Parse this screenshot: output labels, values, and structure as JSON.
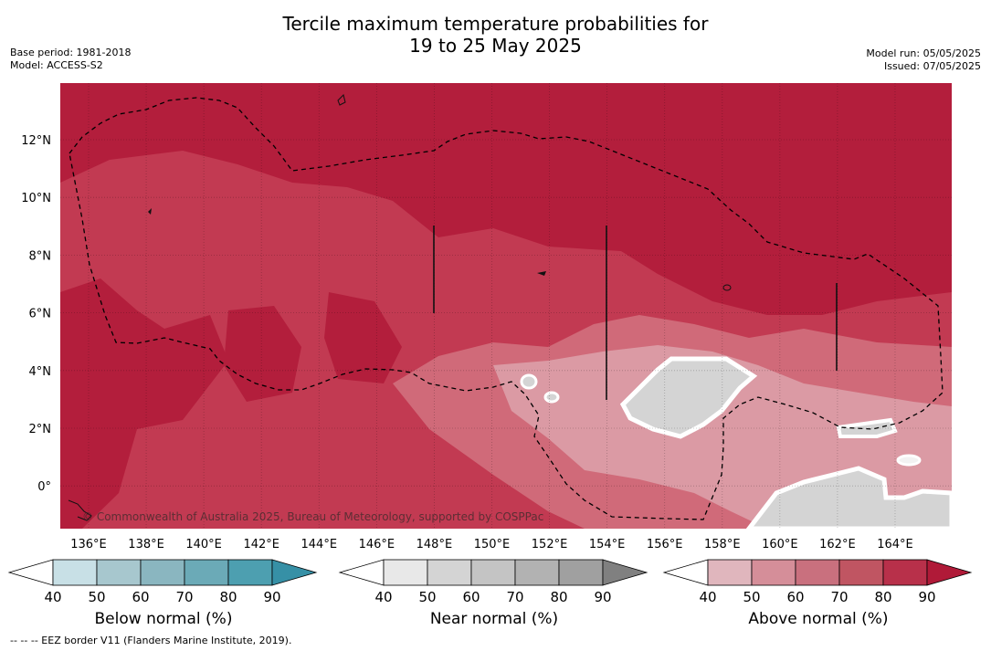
{
  "title": {
    "line1": "Tercile maximum temperature probabilities for",
    "line2": "19 to 25 May 2025"
  },
  "meta_left": {
    "base_period": "Base period: 1981-2018",
    "model": "Model: ACCESS-S2"
  },
  "meta_right": {
    "model_run": "Model run: 05/05/2025",
    "issued": "Issued: 07/05/2025"
  },
  "map": {
    "lon_labels": [
      "136°E",
      "138°E",
      "140°E",
      "142°E",
      "144°E",
      "146°E",
      "148°E",
      "150°E",
      "152°E",
      "154°E",
      "156°E",
      "158°E",
      "160°E",
      "162°E",
      "164°E"
    ],
    "lat_labels": [
      "12°N",
      "10°N",
      "8°N",
      "6°N",
      "4°N",
      "2°N",
      "0°"
    ],
    "copyright": "© Commonwealth of Australia 2025, Bureau of Meteorology, supported by COSPPac",
    "colors": {
      "above_dark": "#b31e3c",
      "above_mid": "#c23a52",
      "above_light": "#d06a79",
      "above_pale": "#db9aa4",
      "near_normal": "#d4d4d4"
    }
  },
  "colorbars": [
    {
      "label": "Below normal (%)",
      "ticks": [
        "40",
        "50",
        "60",
        "70",
        "80",
        "90"
      ],
      "colors": [
        "#ffffff",
        "#c8e0e6",
        "#a7c7ce",
        "#8ab6c0",
        "#6baab7",
        "#4d9fb0",
        "#3690a6"
      ]
    },
    {
      "label": "Near normal (%)",
      "ticks": [
        "40",
        "50",
        "60",
        "70",
        "80",
        "90"
      ],
      "colors": [
        "#ffffff",
        "#e8e8e8",
        "#d4d4d4",
        "#c4c4c4",
        "#b2b2b2",
        "#a0a0a0",
        "#808080"
      ]
    },
    {
      "label": "Above normal (%)",
      "ticks": [
        "40",
        "50",
        "60",
        "70",
        "80",
        "90"
      ],
      "colors": [
        "#ffffff",
        "#e0b6bd",
        "#d58e99",
        "#c9707e",
        "#c05562",
        "#b8304a",
        "#b01a38"
      ]
    }
  ],
  "footer": "--  --  -- EEZ border V11 (Flanders Marine Institute, 2019)."
}
